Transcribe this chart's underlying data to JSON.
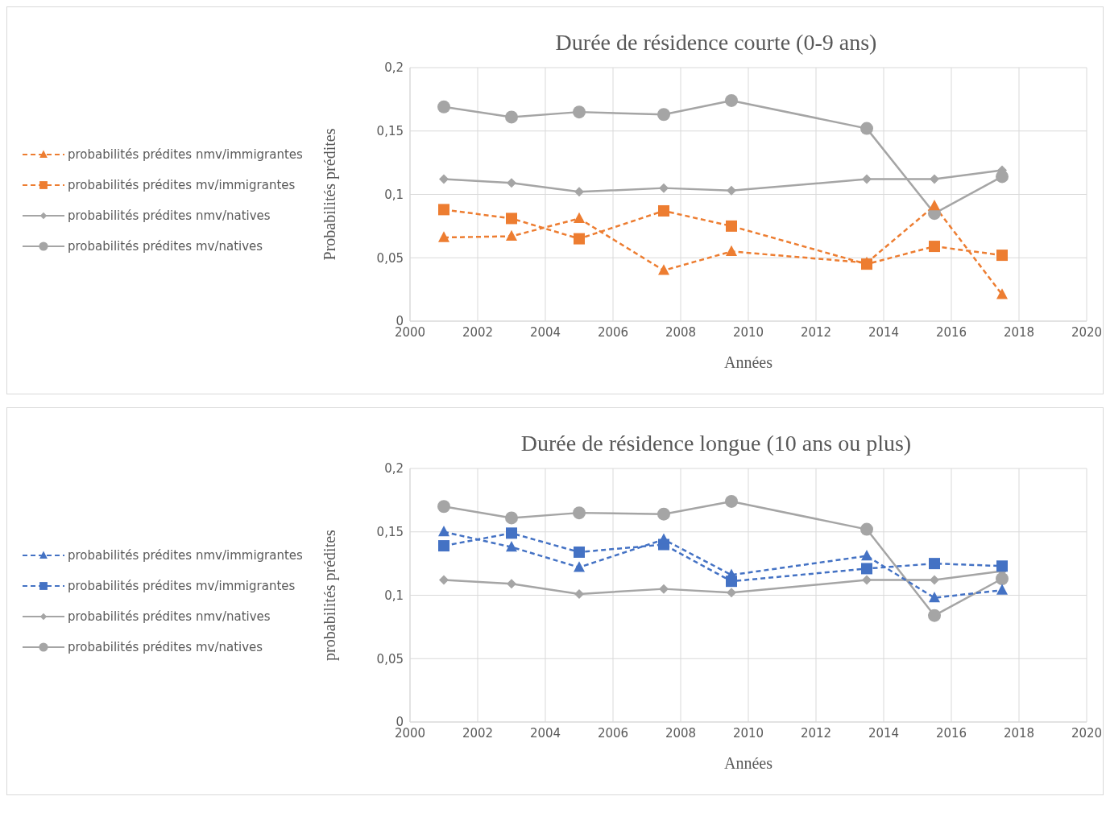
{
  "chart_data": [
    {
      "type": "line",
      "title": "Durée de résidence courte (0-9 ans)",
      "xlabel": "Années",
      "ylabel": "Probabilités prédites",
      "x": [
        2001,
        2003,
        2005,
        2007.5,
        2009.5,
        2013.5,
        2015.5,
        2017.5
      ],
      "series": [
        {
          "name": "probabilités prédites nmv/immigrantes",
          "color": "#ed7d31",
          "marker": "triangle",
          "line_style": "dashed",
          "values": [
            0.066,
            0.067,
            0.081,
            0.04,
            0.055,
            0.046,
            0.091,
            0.021
          ]
        },
        {
          "name": "probabilités prédites mv/immigrantes",
          "color": "#ed7d31",
          "marker": "square",
          "line_style": "dashed",
          "values": [
            0.088,
            0.081,
            0.065,
            0.087,
            0.075,
            0.045,
            0.059,
            0.052
          ]
        },
        {
          "name": "probabilités prédites nmv/natives",
          "color": "#a5a5a5",
          "marker": "diamond",
          "line_style": "solid",
          "values": [
            0.112,
            0.109,
            0.102,
            0.105,
            0.103,
            0.112,
            0.112,
            0.119
          ]
        },
        {
          "name": "probabilités prédites mv/natives",
          "color": "#a5a5a5",
          "marker": "circle",
          "line_style": "solid",
          "values": [
            0.169,
            0.161,
            0.165,
            0.163,
            0.174,
            0.152,
            0.085,
            0.114
          ]
        }
      ],
      "xlim": [
        2000,
        2020
      ],
      "xticks": [
        2000,
        2002,
        2004,
        2006,
        2008,
        2010,
        2012,
        2014,
        2016,
        2018,
        2020
      ],
      "ylim": [
        0,
        0.2
      ],
      "yticks": [
        0,
        {
          "value": 0.05,
          "label": "0,05"
        },
        {
          "value": 0.1,
          "label": "0,1"
        },
        {
          "value": 0.15,
          "label": "0,15"
        },
        {
          "value": 0.2,
          "label": "0,2"
        }
      ],
      "grid": true,
      "legend": "left"
    },
    {
      "type": "line",
      "title": "Durée de résidence longue (10 ans ou plus)",
      "xlabel": "Années",
      "ylabel": "probabilités prédites",
      "x": [
        2001,
        2003,
        2005,
        2007.5,
        2009.5,
        2013.5,
        2015.5,
        2017.5
      ],
      "series": [
        {
          "name": "probabilités prédites nmv/immigrantes",
          "color": "#4472c4",
          "marker": "triangle",
          "line_style": "dashed",
          "values": [
            0.15,
            0.138,
            0.122,
            0.144,
            0.116,
            0.131,
            0.098,
            0.104
          ]
        },
        {
          "name": "probabilités prédites mv/immigrantes",
          "color": "#4472c4",
          "marker": "square",
          "line_style": "dashed",
          "values": [
            0.139,
            0.149,
            0.134,
            0.14,
            0.111,
            0.121,
            0.125,
            0.123
          ]
        },
        {
          "name": "probabilités prédites nmv/natives",
          "color": "#a5a5a5",
          "marker": "diamond",
          "line_style": "solid",
          "values": [
            0.112,
            0.109,
            0.101,
            0.105,
            0.102,
            0.112,
            0.112,
            0.119
          ]
        },
        {
          "name": "probabilités prédites mv/natives",
          "color": "#a5a5a5",
          "marker": "circle",
          "line_style": "solid",
          "values": [
            0.17,
            0.161,
            0.165,
            0.164,
            0.174,
            0.152,
            0.084,
            0.113
          ]
        }
      ],
      "xlim": [
        2000,
        2020
      ],
      "xticks": [
        2000,
        2002,
        2004,
        2006,
        2008,
        2010,
        2012,
        2014,
        2016,
        2018,
        2020
      ],
      "ylim": [
        0,
        0.2
      ],
      "yticks": [
        0,
        {
          "value": 0.05,
          "label": "0,05"
        },
        {
          "value": 0.1,
          "label": "0,1"
        },
        {
          "value": 0.15,
          "label": "0,15"
        },
        {
          "value": 0.2,
          "label": "0,2"
        }
      ],
      "grid": true,
      "legend": "left"
    }
  ]
}
